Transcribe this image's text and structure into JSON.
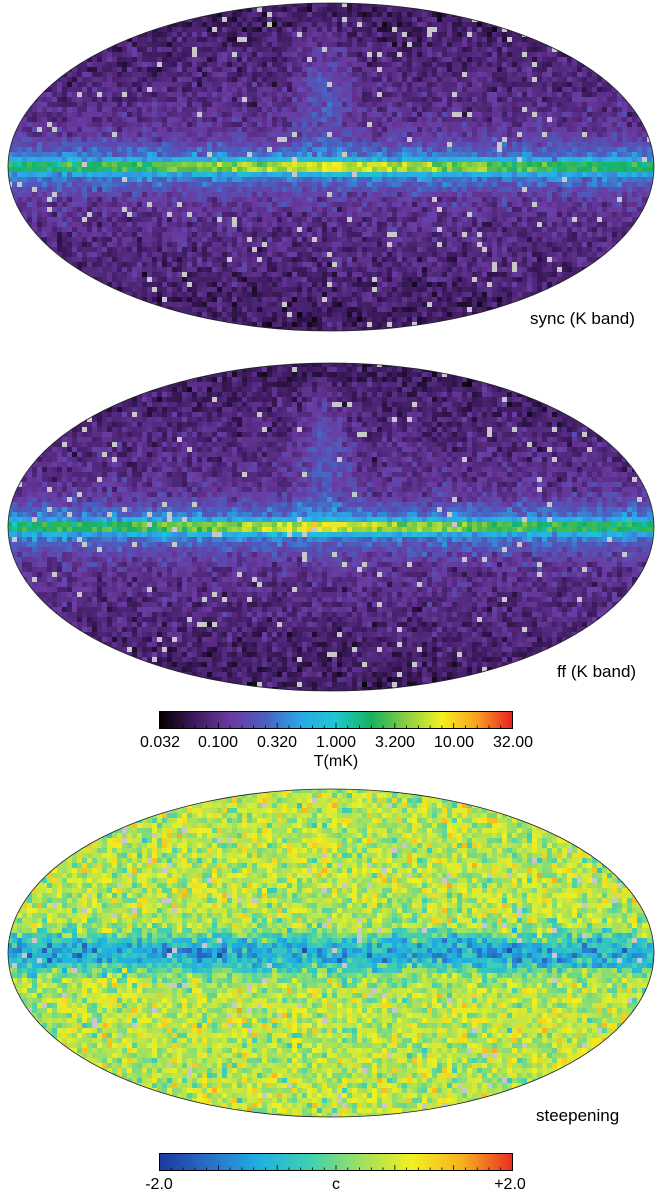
{
  "panels": [
    {
      "label": "sync (K band)",
      "kind": "temperature",
      "colormap": "temperature_log"
    },
    {
      "label": "ff (K band)",
      "kind": "temperature",
      "colormap": "temperature_log"
    },
    {
      "label": "steepening",
      "kind": "index",
      "colormap": "index_linear"
    }
  ],
  "colorbars": [
    {
      "ticks": [
        "0.032",
        "0.100",
        "0.320",
        "1.000",
        "3.200",
        "10.00",
        "32.00"
      ],
      "title": "T(mK)",
      "scale": "log"
    },
    {
      "ticks": [
        "-2.0",
        "+2.0"
      ],
      "title": "c",
      "scale": "linear"
    }
  ],
  "colors": {
    "temperature_log": [
      "#000000",
      "#3d1a5e",
      "#6a3aa0",
      "#4a5fc0",
      "#2aa8e8",
      "#1ec8d0",
      "#18b060",
      "#8ad040",
      "#f6f020",
      "#f8a020",
      "#e82020"
    ],
    "index_linear": [
      "#1a3a9c",
      "#2a70c8",
      "#20b0e0",
      "#40d0b0",
      "#a0e060",
      "#f0f020",
      "#f8b020",
      "#e83020"
    ],
    "masked_pixel": "#c8c8c8"
  }
}
